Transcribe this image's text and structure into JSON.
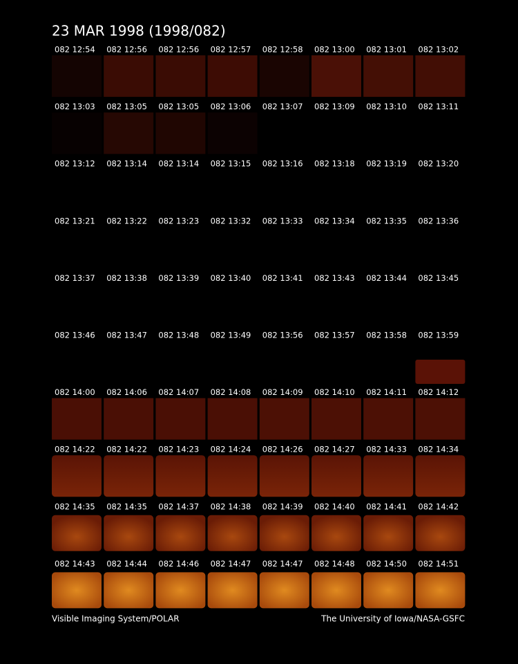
{
  "header": {
    "title": "23 MAR 1998  (1998/082)"
  },
  "panels": {
    "rows": [
      [
        "082 12:54",
        "082 12:56",
        "082 12:56",
        "082 12:57",
        "082 12:58",
        "082 13:00",
        "082 13:01",
        "082 13:02"
      ],
      [
        "082 13:03",
        "082 13:05",
        "082 13:05",
        "082 13:06",
        "082 13:07",
        "082 13:09",
        "082 13:10",
        "082 13:11"
      ],
      [
        "082 13:12",
        "082 13:14",
        "082 13:14",
        "082 13:15",
        "082 13:16",
        "082 13:18",
        "082 13:19",
        "082 13:20"
      ],
      [
        "082 13:21",
        "082 13:22",
        "082 13:23",
        "082 13:32",
        "082 13:33",
        "082 13:34",
        "082 13:35",
        "082 13:36"
      ],
      [
        "082 13:37",
        "082 13:38",
        "082 13:39",
        "082 13:40",
        "082 13:41",
        "082 13:43",
        "082 13:44",
        "082 13:45"
      ],
      [
        "082 13:46",
        "082 13:47",
        "082 13:48",
        "082 13:49",
        "082 13:56",
        "082 13:57",
        "082 13:58",
        "082 13:59"
      ],
      [
        "082 14:00",
        "082 14:06",
        "082 14:07",
        "082 14:08",
        "082 14:09",
        "082 14:10",
        "082 14:11",
        "082 14:12"
      ],
      [
        "082 14:22",
        "082 14:22",
        "082 14:23",
        "082 14:24",
        "082 14:26",
        "082 14:27",
        "082 14:33",
        "082 14:34"
      ],
      [
        "082 14:35",
        "082 14:35",
        "082 14:37",
        "082 14:38",
        "082 14:39",
        "082 14:40",
        "082 14:41",
        "082 14:42"
      ],
      [
        "082 14:43",
        "082 14:44",
        "082 14:46",
        "082 14:47",
        "082 14:47",
        "082 14:48",
        "082 14:50",
        "082 14:51"
      ]
    ]
  },
  "footer": {
    "left": "Visible Imaging System/POLAR",
    "right": "The University of Iowa/NASA-GSFC"
  }
}
